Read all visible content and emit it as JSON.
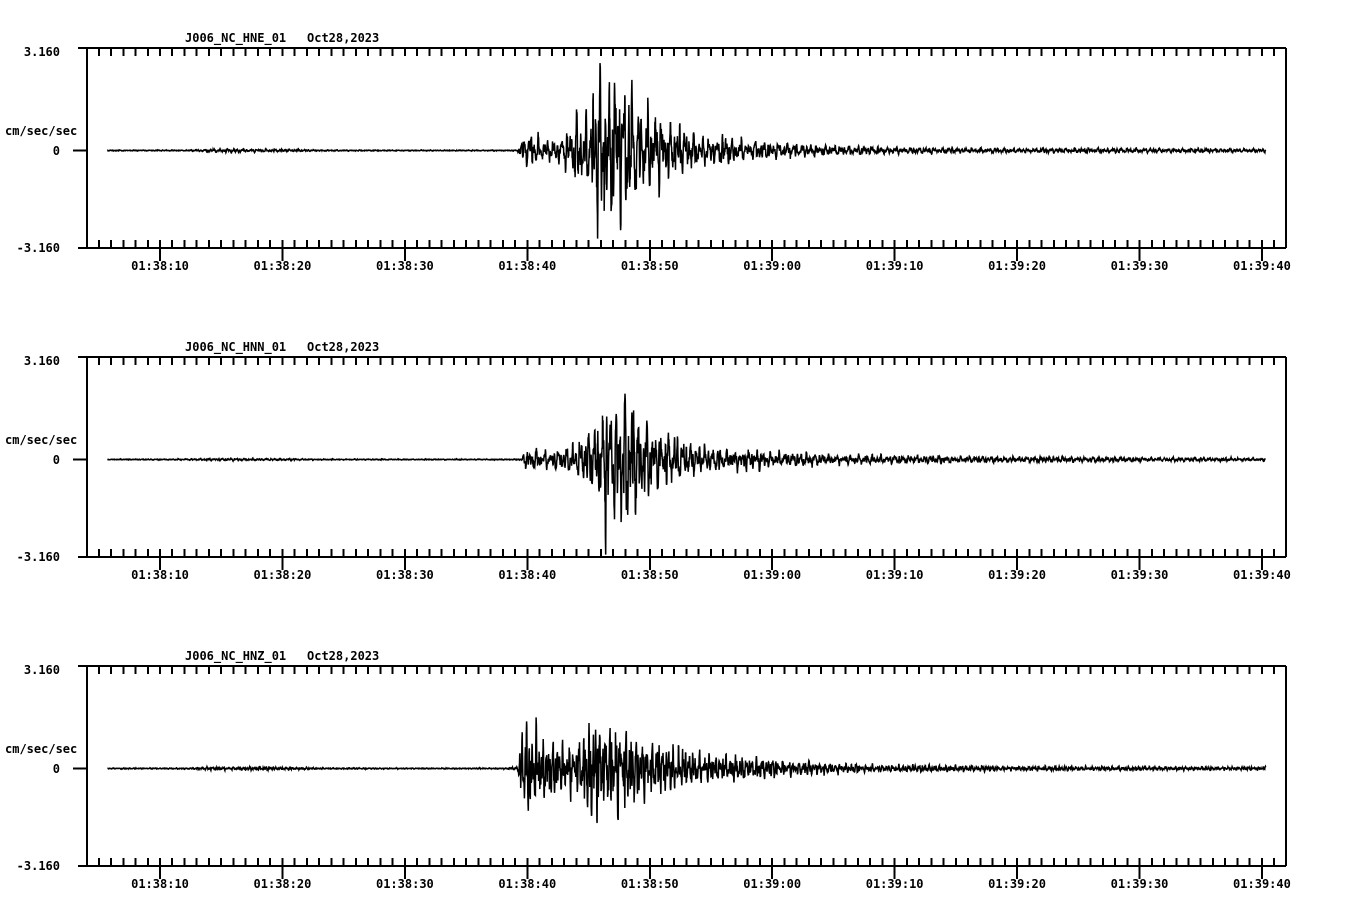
{
  "page": {
    "background_color": "#ffffff",
    "ink_color": "#000000",
    "description": "Three-component strong-motion seismogram record display"
  },
  "chart_data": {
    "type": "line",
    "subtype": "seismogram",
    "station": "J006_NC",
    "location_code": "01",
    "date": "Oct28,2023",
    "amplitude_units": "cm/sec/sec",
    "grid": "off",
    "y_axis": {
      "max": 3.16,
      "min": -3.16,
      "tick_labels": [
        "3.160",
        "0",
        "-3.160"
      ]
    },
    "x_axis": {
      "window_start": "01:38:04",
      "window_end": "01:39:42",
      "major_tick_interval_s": 10,
      "minor_tick_interval_s": 1,
      "tick_labels": [
        "01:38:10",
        "01:38:20",
        "01:38:30",
        "01:38:40",
        "01:38:50",
        "01:39:00",
        "01:39:10",
        "01:39:20",
        "01:39:30",
        "01:39:40"
      ],
      "tick_times_s_after_0138": [
        10,
        20,
        30,
        40,
        50,
        60,
        70,
        80,
        90,
        100
      ]
    },
    "event": {
      "p_onset": "01:38:39.5",
      "s_phase_peak": "01:38:46"
    },
    "channels": [
      {
        "component": "HNE",
        "label": "J006_NC_HNE_01",
        "date": "Oct28,2023",
        "seed": 101,
        "onset_time": "01:38:39.5",
        "peak_time": "01:38:46",
        "peak_amp_cm_s2": 2.95,
        "trace_start_s": 5.7,
        "trace_end_s": 100.3,
        "envelope": [
          [
            5.7,
            0.012
          ],
          [
            12,
            0.018
          ],
          [
            14,
            0.055
          ],
          [
            16.5,
            0.08
          ],
          [
            19,
            0.055
          ],
          [
            22,
            0.03
          ],
          [
            26,
            0.018
          ],
          [
            34,
            0.014
          ],
          [
            39.2,
            0.016
          ],
          [
            39.6,
            0.5
          ],
          [
            40.2,
            0.8
          ],
          [
            41,
            0.55
          ],
          [
            42,
            0.45
          ],
          [
            43,
            0.6
          ],
          [
            44.1,
            1.5
          ],
          [
            45,
            1.3
          ],
          [
            45.8,
            2.95
          ],
          [
            46.4,
            2.2
          ],
          [
            47.2,
            2.8
          ],
          [
            48,
            2.3
          ],
          [
            48.8,
            2.2
          ],
          [
            49.6,
            1.6
          ],
          [
            50.3,
            1.9
          ],
          [
            51.2,
            1.1
          ],
          [
            52.5,
            0.85
          ],
          [
            54,
            0.55
          ],
          [
            55.5,
            0.45
          ],
          [
            56.5,
            0.6
          ],
          [
            58,
            0.35
          ],
          [
            60,
            0.3
          ],
          [
            62,
            0.25
          ],
          [
            64,
            0.2
          ],
          [
            66,
            0.15
          ],
          [
            69,
            0.13
          ],
          [
            72,
            0.11
          ],
          [
            76,
            0.1
          ],
          [
            80,
            0.09
          ],
          [
            85,
            0.08
          ],
          [
            90,
            0.075
          ],
          [
            95,
            0.07
          ],
          [
            100.3,
            0.06
          ]
        ]
      },
      {
        "component": "HNN",
        "label": "J006_NC_HNN_01",
        "date": "Oct28,2023",
        "seed": 202,
        "onset_time": "01:38:39.6",
        "peak_time": "01:38:46.4",
        "peak_amp_cm_s2": 3.0,
        "trace_start_s": 5.7,
        "trace_end_s": 100.3,
        "envelope": [
          [
            5.7,
            0.01
          ],
          [
            12,
            0.02
          ],
          [
            14.5,
            0.05
          ],
          [
            17,
            0.045
          ],
          [
            20,
            0.035
          ],
          [
            23,
            0.02
          ],
          [
            30,
            0.013
          ],
          [
            38,
            0.013
          ],
          [
            39.5,
            0.016
          ],
          [
            39.8,
            0.32
          ],
          [
            40.8,
            0.38
          ],
          [
            42,
            0.3
          ],
          [
            43.2,
            0.45
          ],
          [
            44.2,
            0.65
          ],
          [
            45.1,
            1.0
          ],
          [
            45.9,
            1.7
          ],
          [
            46.4,
            3.0
          ],
          [
            47.1,
            2.2
          ],
          [
            47.8,
            2.6
          ],
          [
            48.6,
            1.9
          ],
          [
            49.4,
            1.4
          ],
          [
            50.4,
            1.05
          ],
          [
            51.5,
            0.85
          ],
          [
            53,
            0.65
          ],
          [
            54.5,
            0.5
          ],
          [
            56,
            0.42
          ],
          [
            58,
            0.45
          ],
          [
            60,
            0.32
          ],
          [
            62.5,
            0.27
          ],
          [
            65,
            0.22
          ],
          [
            68,
            0.18
          ],
          [
            72,
            0.14
          ],
          [
            76,
            0.12
          ],
          [
            81,
            0.1
          ],
          [
            86,
            0.085
          ],
          [
            92,
            0.075
          ],
          [
            100.3,
            0.06
          ]
        ]
      },
      {
        "component": "HNZ",
        "label": "J006_NC_HNZ_01",
        "date": "Oct28,2023",
        "seed": 303,
        "onset_time": "01:38:39.5",
        "peak_time": "01:38:40",
        "peak_amp_cm_s2": 2.35,
        "trace_start_s": 5.7,
        "trace_end_s": 100.3,
        "envelope": [
          [
            5.7,
            0.012
          ],
          [
            12,
            0.025
          ],
          [
            14,
            0.06
          ],
          [
            17,
            0.065
          ],
          [
            20,
            0.05
          ],
          [
            23,
            0.028
          ],
          [
            30,
            0.016
          ],
          [
            38,
            0.016
          ],
          [
            39.2,
            0.05
          ],
          [
            39.5,
            1.2
          ],
          [
            39.9,
            2.35
          ],
          [
            40.4,
            1.3
          ],
          [
            40.8,
            1.7
          ],
          [
            41.4,
            1.05
          ],
          [
            42.2,
            1.2
          ],
          [
            43,
            0.95
          ],
          [
            43.8,
            1.1
          ],
          [
            44.6,
            1.4
          ],
          [
            45.5,
            1.85
          ],
          [
            46.3,
            1.35
          ],
          [
            47.2,
            1.75
          ],
          [
            48,
            1.3
          ],
          [
            48.8,
            1.4
          ],
          [
            49.6,
            1.1
          ],
          [
            50.5,
            0.95
          ],
          [
            51.5,
            0.8
          ],
          [
            52.8,
            0.7
          ],
          [
            54,
            0.6
          ],
          [
            55.5,
            0.5
          ],
          [
            57,
            0.45
          ],
          [
            59,
            0.36
          ],
          [
            61,
            0.3
          ],
          [
            63.5,
            0.24
          ],
          [
            66,
            0.2
          ],
          [
            69,
            0.16
          ],
          [
            72,
            0.13
          ],
          [
            76,
            0.11
          ],
          [
            81,
            0.09
          ],
          [
            87,
            0.078
          ],
          [
            93,
            0.068
          ],
          [
            100.3,
            0.06
          ]
        ]
      }
    ]
  }
}
